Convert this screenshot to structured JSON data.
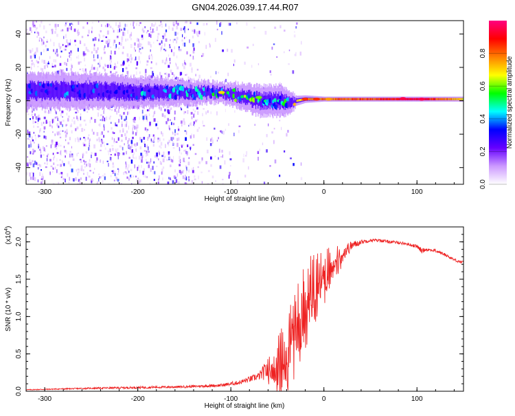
{
  "title": "GN04.2026.039.17.44.R07",
  "chart_data": [
    {
      "type": "heatmap",
      "xlabel": "Height of straight line (km)",
      "ylabel": "Frequency (Hz)",
      "xlim": [
        -320,
        150
      ],
      "ylim": [
        -50,
        48
      ],
      "xticks": [
        -300,
        -200,
        -100,
        0,
        100
      ],
      "yticks": [
        -40,
        -20,
        0,
        20,
        40
      ],
      "colorbar": {
        "label": "Normalized spectral amplitude",
        "range": [
          0,
          1
        ],
        "ticks": [
          "0.0",
          "0.2",
          "0.4",
          "0.6",
          "0.8"
        ],
        "stops": [
          "#ffffff",
          "#cc99ff",
          "#6600ff",
          "#0000ff",
          "#00ffff",
          "#00ff00",
          "#ffff00",
          "#ff8000",
          "#ff0000",
          "#ff0080"
        ]
      },
      "ridge": {
        "x": [
          -300,
          -250,
          -200,
          -150,
          -110,
          -90,
          -70,
          -55,
          -45,
          -35,
          -30,
          -20,
          0,
          50,
          100,
          150
        ],
        "center_hz": [
          6,
          6,
          5,
          5,
          5,
          3,
          0,
          0,
          0,
          -1,
          0,
          1,
          1,
          1,
          1,
          1
        ],
        "halfwidth_hz": [
          7,
          7,
          6,
          5,
          4,
          5,
          6,
          6,
          6,
          4,
          2,
          1.5,
          1,
          1,
          1,
          1
        ],
        "intensity": [
          0.35,
          0.35,
          0.4,
          0.4,
          0.5,
          0.55,
          0.55,
          0.5,
          0.45,
          0.6,
          0.7,
          0.75,
          0.8,
          0.85,
          0.95,
          0.7
        ]
      }
    },
    {
      "type": "line",
      "xlabel": "Height of straight line (km)",
      "ylabel": "SNR (10 * v/v)",
      "yscale_label": "(x10",
      "yscale_exp": "4",
      "xlim": [
        -320,
        150
      ],
      "ylim": [
        0,
        2.2
      ],
      "xticks": [
        -300,
        -200,
        -100,
        0,
        100
      ],
      "yticks": [
        "0.0",
        "0.5",
        "1.0",
        "1.5",
        "2.0"
      ],
      "series": [
        {
          "name": "SNR",
          "color": "#ee2222",
          "x": [
            -320,
            -250,
            -200,
            -150,
            -110,
            -90,
            -70,
            -60,
            -55,
            -50,
            -45,
            -40,
            -35,
            -30,
            -25,
            -20,
            -15,
            -10,
            -5,
            0,
            10,
            20,
            30,
            40,
            50,
            60,
            70,
            80,
            90,
            100,
            105,
            110,
            120,
            130,
            140,
            150
          ],
          "y": [
            0.02,
            0.04,
            0.05,
            0.06,
            0.08,
            0.12,
            0.2,
            0.3,
            0.35,
            0.4,
            0.5,
            0.6,
            0.75,
            0.95,
            1.1,
            1.25,
            1.4,
            1.5,
            1.55,
            1.6,
            1.75,
            1.85,
            1.95,
            2.0,
            2.02,
            2.02,
            2.0,
            1.99,
            1.97,
            1.94,
            1.88,
            1.9,
            1.88,
            1.83,
            1.76,
            1.72
          ],
          "noise": [
            0.005,
            0.01,
            0.015,
            0.015,
            0.02,
            0.03,
            0.05,
            0.15,
            0.25,
            0.35,
            0.4,
            0.45,
            0.45,
            0.5,
            0.55,
            0.5,
            0.45,
            0.4,
            0.35,
            0.3,
            0.2,
            0.12,
            0.06,
            0.03,
            0.02,
            0.02,
            0.02,
            0.02,
            0.02,
            0.02,
            0.04,
            0.02,
            0.02,
            0.02,
            0.02,
            0.02
          ]
        }
      ]
    }
  ]
}
